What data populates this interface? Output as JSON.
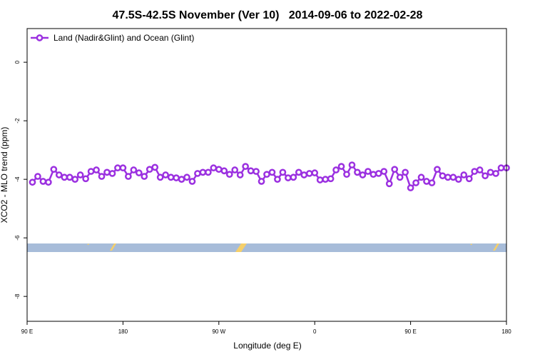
{
  "chart_data": {
    "type": "line",
    "title": "47.5S-42.5S November (Ver 10)   2014-09-06 to 2022-02-28",
    "xlabel": "Longitude (deg E)",
    "ylabel": "XCO2 - MLO trend (ppm)",
    "xlim": [
      90,
      540
    ],
    "xticks": [
      {
        "value": 90,
        "label": "90 E"
      },
      {
        "value": 180,
        "label": "180"
      },
      {
        "value": 270,
        "label": "90 W"
      },
      {
        "value": 360,
        "label": "0"
      },
      {
        "value": 450,
        "label": "90 E"
      },
      {
        "value": 540,
        "label": "180"
      }
    ],
    "ylim": [
      -8.85,
      1.15
    ],
    "yticks": [
      0,
      -2,
      -4,
      -6,
      -8
    ],
    "legend": "upper left",
    "x": [
      95,
      100,
      105,
      110,
      115,
      120,
      125,
      130,
      135,
      140,
      145,
      150,
      155,
      160,
      165,
      170,
      175,
      180,
      185,
      190,
      195,
      200,
      205,
      210,
      215,
      220,
      225,
      230,
      235,
      240,
      245,
      250,
      255,
      260,
      265,
      270,
      275,
      280,
      285,
      290,
      295,
      300,
      305,
      310,
      315,
      320,
      325,
      330,
      335,
      340,
      345,
      350,
      355,
      360,
      365,
      370,
      375,
      380,
      385,
      390,
      395,
      400,
      405,
      410,
      415,
      420,
      425,
      430,
      435,
      440,
      445,
      450,
      455,
      460,
      465,
      470,
      475,
      480,
      485,
      490,
      495,
      500,
      505,
      510,
      515,
      520,
      525,
      530,
      535,
      540
    ],
    "series": [
      {
        "name": "Land (Nadir&Glint) and Ocean (Glint)",
        "color": "#9b30e0",
        "values": [
          -4.1,
          -3.9,
          -4.07,
          -4.1,
          -3.66,
          -3.85,
          -3.93,
          -3.93,
          -4.0,
          -3.85,
          -3.98,
          -3.73,
          -3.68,
          -3.9,
          -3.76,
          -3.8,
          -3.61,
          -3.61,
          -3.9,
          -3.68,
          -3.78,
          -3.9,
          -3.66,
          -3.59,
          -3.93,
          -3.85,
          -3.93,
          -3.95,
          -4.0,
          -3.93,
          -4.07,
          -3.8,
          -3.76,
          -3.76,
          -3.61,
          -3.66,
          -3.71,
          -3.83,
          -3.68,
          -3.85,
          -3.56,
          -3.71,
          -3.73,
          -4.07,
          -3.83,
          -3.76,
          -4.0,
          -3.76,
          -3.95,
          -3.93,
          -3.76,
          -3.85,
          -3.8,
          -3.78,
          -4.02,
          -4.0,
          -3.98,
          -3.68,
          -3.56,
          -3.83,
          -3.51,
          -3.76,
          -3.85,
          -3.73,
          -3.83,
          -3.8,
          -3.73,
          -4.15,
          -3.66,
          -3.93,
          -3.76,
          -4.29,
          -4.12,
          -3.93,
          -4.07,
          -4.12,
          -3.66,
          -3.88,
          -3.93,
          -3.93,
          -4.0,
          -3.85,
          -3.98,
          -3.73,
          -3.68,
          -3.88,
          -3.76,
          -3.8,
          -3.61,
          -3.61
        ]
      }
    ]
  }
}
